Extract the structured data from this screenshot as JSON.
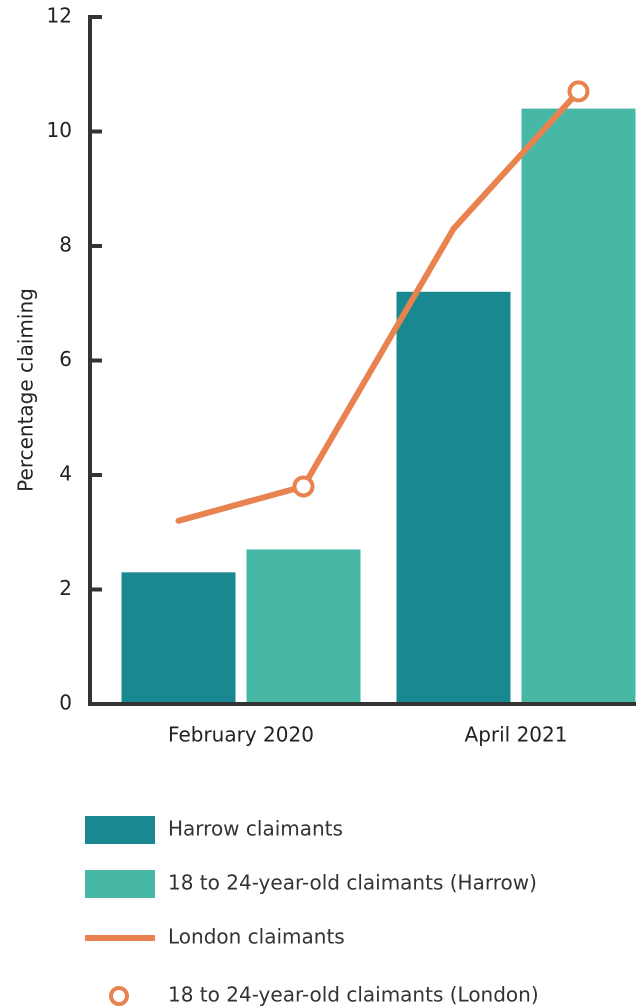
{
  "chart_data": {
    "type": "bar",
    "ylabel": "Percentage claiming",
    "categories": [
      "February 2020",
      "April 2021"
    ],
    "ylim": [
      0,
      12
    ],
    "yticks": [
      0,
      2,
      4,
      6,
      8,
      10,
      12
    ],
    "series": [
      {
        "name": "Harrow claimants",
        "type": "bar",
        "color": "#1a8891",
        "values": [
          2.3,
          7.2
        ]
      },
      {
        "name": "18 to 24-year-old claimants (Harrow)",
        "type": "bar",
        "color": "#48b8a6",
        "values": [
          2.7,
          10.4
        ]
      },
      {
        "name": "London claimants",
        "type": "line",
        "color": "#e8824f",
        "values": [
          3.2,
          8.3
        ]
      },
      {
        "name": "18 to 24-year-old claimants (London)",
        "type": "marker",
        "color": "#e8824f",
        "values": [
          3.8,
          10.7
        ]
      }
    ]
  }
}
